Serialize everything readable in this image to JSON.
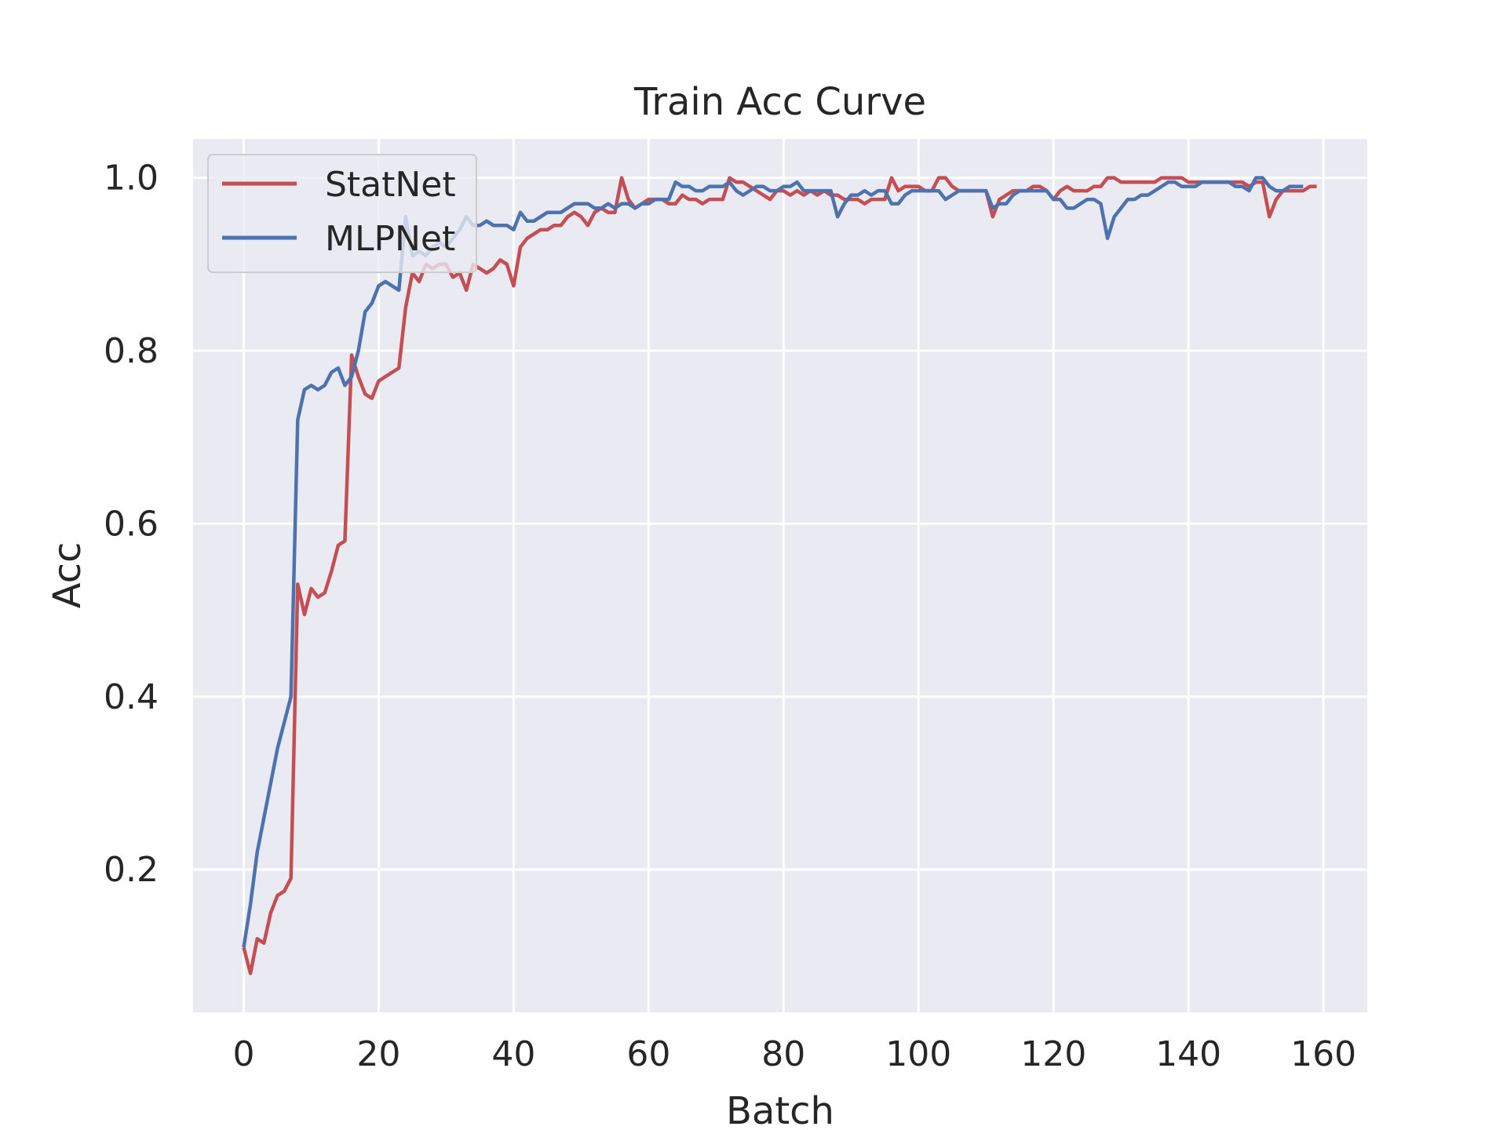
{
  "chart_data": {
    "type": "line",
    "title": "Train Acc Curve",
    "xlabel": "Batch",
    "ylabel": "Acc",
    "xlim": [
      -7.5,
      166.5
    ],
    "ylim": [
      0.035,
      1.045
    ],
    "xticks": [
      0,
      20,
      40,
      60,
      80,
      100,
      120,
      140,
      160
    ],
    "yticks": [
      0.2,
      0.4,
      0.6,
      0.8,
      1.0
    ],
    "xtick_labels": [
      "0",
      "20",
      "40",
      "60",
      "80",
      "100",
      "120",
      "140",
      "160"
    ],
    "ytick_labels": [
      "0.2",
      "0.4",
      "0.6",
      "0.8",
      "1.0"
    ],
    "grid": true,
    "legend_position": "upper-left",
    "background": "#eaeaf2",
    "series": [
      {
        "name": "StatNet",
        "color": "#c44e52",
        "values": [
          0.11,
          0.08,
          0.12,
          0.115,
          0.15,
          0.17,
          0.175,
          0.19,
          0.53,
          0.495,
          0.525,
          0.515,
          0.52,
          0.545,
          0.575,
          0.58,
          0.795,
          0.77,
          0.75,
          0.745,
          0.765,
          0.77,
          0.775,
          0.78,
          0.85,
          0.89,
          0.88,
          0.9,
          0.895,
          0.9,
          0.9,
          0.885,
          0.89,
          0.87,
          0.9,
          0.895,
          0.89,
          0.895,
          0.905,
          0.9,
          0.875,
          0.92,
          0.93,
          0.935,
          0.94,
          0.94,
          0.945,
          0.945,
          0.955,
          0.96,
          0.955,
          0.945,
          0.96,
          0.965,
          0.96,
          0.96,
          1.0,
          0.975,
          0.965,
          0.97,
          0.975,
          0.975,
          0.975,
          0.97,
          0.97,
          0.98,
          0.975,
          0.975,
          0.97,
          0.975,
          0.975,
          0.975,
          1.0,
          0.995,
          0.995,
          0.99,
          0.985,
          0.98,
          0.975,
          0.985,
          0.985,
          0.98,
          0.985,
          0.98,
          0.985,
          0.98,
          0.985,
          0.98,
          0.98,
          0.975,
          0.975,
          0.975,
          0.97,
          0.975,
          0.975,
          0.975,
          1.0,
          0.985,
          0.99,
          0.99,
          0.99,
          0.985,
          0.985,
          1.0,
          1.0,
          0.99,
          0.985,
          0.985,
          0.985,
          0.985,
          0.985,
          0.955,
          0.975,
          0.98,
          0.985,
          0.985,
          0.985,
          0.99,
          0.99,
          0.985,
          0.975,
          0.985,
          0.99,
          0.985,
          0.985,
          0.985,
          0.99,
          0.99,
          1.0,
          1.0,
          0.995,
          0.995,
          0.995,
          0.995,
          0.995,
          0.995,
          1.0,
          1.0,
          1.0,
          1.0,
          0.995,
          0.995,
          0.995,
          0.995,
          0.995,
          0.995,
          0.995,
          0.995,
          0.995,
          0.99,
          0.995,
          0.995,
          0.955,
          0.975,
          0.985,
          0.985,
          0.985,
          0.985,
          0.99,
          0.99
        ],
        "stride": 1
      },
      {
        "name": "MLPNet",
        "color": "#4c72b0",
        "values": [
          0.11,
          0.16,
          0.22,
          0.26,
          0.3,
          0.34,
          0.37,
          0.4,
          0.72,
          0.755,
          0.76,
          0.755,
          0.76,
          0.775,
          0.78,
          0.76,
          0.77,
          0.8,
          0.845,
          0.855,
          0.875,
          0.88,
          0.875,
          0.87,
          0.955,
          0.91,
          0.915,
          0.91,
          0.92,
          0.925,
          0.92,
          0.93,
          0.94,
          0.955,
          0.945,
          0.945,
          0.95,
          0.945,
          0.945,
          0.945,
          0.94,
          0.96,
          0.95,
          0.95,
          0.955,
          0.96,
          0.96,
          0.96,
          0.965,
          0.97,
          0.97,
          0.97,
          0.965,
          0.965,
          0.97,
          0.965,
          0.97,
          0.97,
          0.965,
          0.97,
          0.97,
          0.975,
          0.975,
          0.975,
          0.995,
          0.99,
          0.99,
          0.985,
          0.985,
          0.99,
          0.99,
          0.99,
          0.995,
          0.985,
          0.98,
          0.985,
          0.99,
          0.99,
          0.985,
          0.985,
          0.99,
          0.99,
          0.995,
          0.985,
          0.985,
          0.985,
          0.985,
          0.985,
          0.955,
          0.97,
          0.98,
          0.98,
          0.985,
          0.98,
          0.985,
          0.985,
          0.97,
          0.97,
          0.98,
          0.985,
          0.985,
          0.985,
          0.985,
          0.985,
          0.975,
          0.98,
          0.985,
          0.985,
          0.985,
          0.985,
          0.985,
          0.965,
          0.97,
          0.97,
          0.98,
          0.985,
          0.985,
          0.985,
          0.985,
          0.985,
          0.975,
          0.975,
          0.965,
          0.965,
          0.97,
          0.975,
          0.975,
          0.97,
          0.93,
          0.955,
          0.965,
          0.975,
          0.975,
          0.98,
          0.98,
          0.985,
          0.99,
          0.995,
          0.995,
          0.99,
          0.99,
          0.99,
          0.995,
          0.995,
          0.995,
          0.995,
          0.995,
          0.99,
          0.99,
          0.985,
          1.0,
          1.0,
          0.99,
          0.985,
          0.985,
          0.99,
          0.99,
          0.99
        ],
        "stride": 1
      }
    ]
  }
}
